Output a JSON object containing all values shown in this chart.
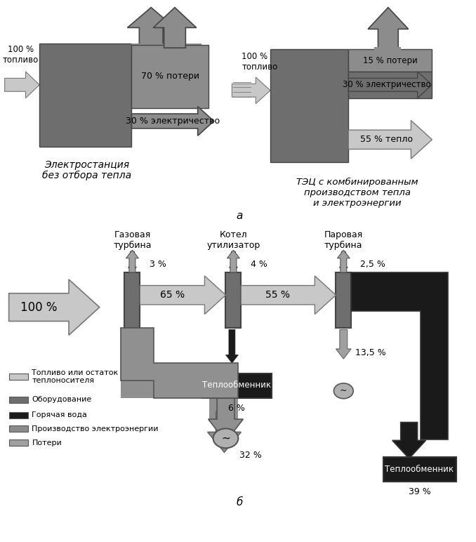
{
  "bg_color": "#ffffff",
  "gray_box": "#6e6e6e",
  "gray_arrow": "#8c8c8c",
  "light_gray_arrow": "#c8c8c8",
  "med_gray": "#a0a0a0",
  "dark_color": "#1a1a1a",
  "white": "#ffffff",
  "section_a": "а",
  "section_b": "б",
  "label1_line1": "Электростанция",
  "label1_line2": "без отбора тепла",
  "label2": "ТЭЦ с комбинированным\nпроизводством тепла\nи электроэнергии",
  "top_fuel1": "100 %\nтопливо",
  "top_70": "70 % потери",
  "top_30": "30 % электричество",
  "top_fuel2": "100 %\nтопливо",
  "top_15": "15 % потери",
  "top_30e": "30 % электричество",
  "top_55": "55 % тепло",
  "b_100": "100 %",
  "b_gas_turb": "Газовая\nтурбина",
  "b_boiler": "Котел\nутилизатор",
  "b_steam": "Паровая\nтурбина",
  "b_3": "3 %",
  "b_65": "65 %",
  "b_4": "4 %",
  "b_55": "55 %",
  "b_25": "2,5 %",
  "b_135": "13,5 %",
  "b_6": "6 %",
  "b_32": "32 %",
  "b_39": "39 %",
  "b_heat1": "Теплообменник",
  "b_heat2": "Теплообменник",
  "leg1": "Топливо или остаток\nтеплоносителя",
  "leg2": "Оборудование",
  "leg3": "Горячая вода",
  "leg4": "Производство электроэнергии",
  "leg5": "Потери"
}
